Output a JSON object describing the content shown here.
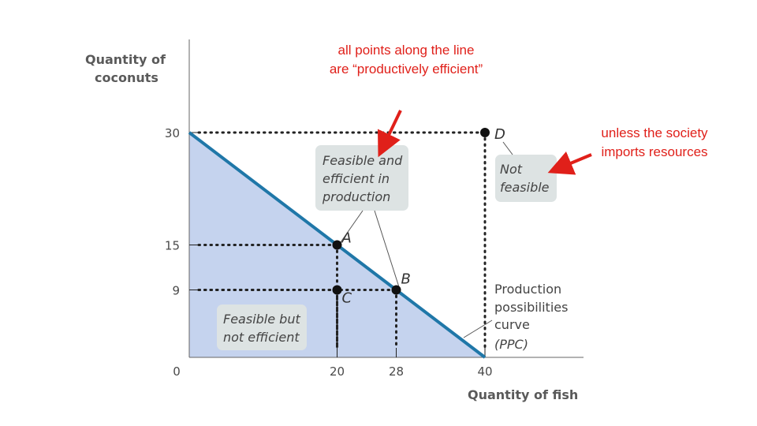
{
  "chart_data": {
    "type": "line",
    "title": "",
    "xlabel": "Quantity of fish",
    "ylabel_lines": [
      "Quantity of",
      "coconuts"
    ],
    "xlim": [
      0,
      40
    ],
    "ylim": [
      0,
      30
    ],
    "x_ticks": [
      0,
      20,
      28,
      40
    ],
    "y_ticks": [
      9,
      15,
      30
    ],
    "origin_label": "0",
    "ppc": {
      "x": [
        0,
        40
      ],
      "y": [
        30,
        0
      ]
    },
    "points": [
      {
        "label": "A",
        "x": 20,
        "y": 15
      },
      {
        "label": "B",
        "x": 28,
        "y": 9
      },
      {
        "label": "C",
        "x": 20,
        "y": 9
      },
      {
        "label": "D",
        "x": 40,
        "y": 30
      }
    ],
    "annotations": {
      "feasible_efficient": [
        "Feasible and",
        "efficient in",
        "production"
      ],
      "not_feasible": [
        "Not",
        "feasible"
      ],
      "feasible_not_efficient": [
        "Feasible but",
        "not efficient"
      ],
      "ppc_label": [
        "Production",
        "possibilities",
        "curve",
        "(PPC)"
      ]
    },
    "colors": {
      "ppc_line": "#1f77a8",
      "feasible_area": "#c5d3ee",
      "box_fill": "#dde3e3",
      "note": "#e0201a"
    }
  },
  "notes": {
    "top": "all points along the line are “productively efficient”",
    "right": "unless the society imports resources"
  }
}
